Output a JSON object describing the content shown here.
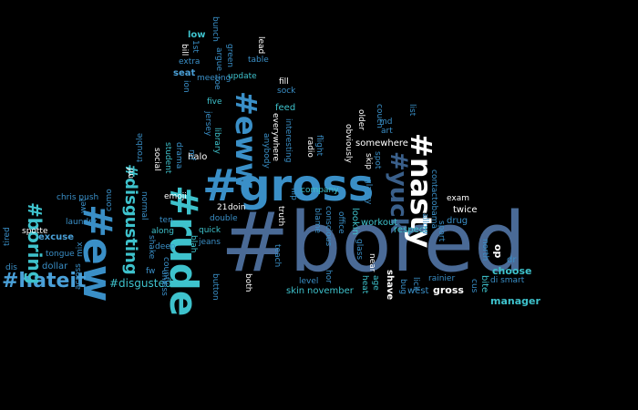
{
  "words": [
    {
      "t": "#bored",
      "c": "#4a6a96"
    },
    {
      "t": "#gross",
      "c": "#3a8fc7"
    },
    {
      "t": "#rude",
      "c": "#3ec2cc"
    },
    {
      "t": "#ew",
      "c": "#3a8fc7"
    },
    {
      "t": "#eww",
      "c": "#3a8fc7"
    },
    {
      "t": "#nasty",
      "c": "#ffffff"
    },
    {
      "t": "#yuck",
      "c": "#3a5f8a"
    },
    {
      "t": "#disgusted",
      "c": "#3ec2cc"
    },
    {
      "t": "#hateit",
      "c": "#4aa0d8"
    },
    {
      "t": "#boring",
      "c": "#3ec2cc"
    },
    {
      "t": "#disgusting",
      "c": "#3ec2cc"
    },
    {
      "t": "choose",
      "c": "#3ec2cc"
    },
    {
      "t": "manager",
      "c": "#3ec2cc"
    },
    {
      "t": "gross",
      "c": "#ffffff"
    },
    {
      "t": "respect",
      "c": "#3ec2cc"
    },
    {
      "t": "workout",
      "c": "#3ec2cc"
    },
    {
      "t": "somewhere",
      "c": "#ffffff"
    },
    {
      "t": "excuse",
      "c": "#4aa0d8"
    },
    {
      "t": "chris push",
      "c": "#3a8fc7"
    },
    {
      "t": "dollar",
      "c": "#3a8fc7"
    },
    {
      "t": "tongue",
      "c": "#3a8fc7"
    },
    {
      "t": "laundry",
      "c": "#3a8fc7"
    },
    {
      "t": "spotte",
      "c": "#ffffff"
    },
    {
      "t": "twice",
      "c": "#ffffff"
    },
    {
      "t": "exam",
      "c": "#ffffff"
    },
    {
      "t": "drug",
      "c": "#3a8fc7"
    },
    {
      "t": "skin",
      "c": "#3ec2cc"
    },
    {
      "t": "november",
      "c": "#3ec2cc"
    },
    {
      "t": "company",
      "c": "#3ec2cc"
    },
    {
      "t": "level",
      "c": "#3a8fc7"
    },
    {
      "t": "west",
      "c": "#3a8fc7"
    },
    {
      "t": "rainier",
      "c": "#3a8fc7"
    },
    {
      "t": "dr",
      "c": "#3a8fc7"
    },
    {
      "t": "north",
      "c": "#3a8fc7"
    },
    {
      "t": "di smart",
      "c": "#3a8fc7"
    },
    {
      "t": "fw",
      "c": "#3a8fc7"
    },
    {
      "t": "doin",
      "c": "#ffffff"
    },
    {
      "t": "21",
      "c": "#ffffff"
    },
    {
      "t": "jeans",
      "c": "#3a8fc7"
    },
    {
      "t": "double",
      "c": "#3a8fc7"
    },
    {
      "t": "quick",
      "c": "#3ec2cc"
    },
    {
      "t": "deep",
      "c": "#3a8fc7"
    },
    {
      "t": "ten",
      "c": "#3a8fc7"
    },
    {
      "t": "along",
      "c": "#3ec2cc"
    },
    {
      "t": "emoji",
      "c": "#ffffff"
    },
    {
      "t": "halo",
      "c": "#ffffff"
    },
    {
      "t": "dis",
      "c": "#3a8fc7"
    },
    {
      "t": "trouble",
      "c": "#3a8fc7"
    },
    {
      "t": "low",
      "c": "#3ec2cc"
    },
    {
      "t": "extra",
      "c": "#3a8fc7"
    },
    {
      "t": "seat",
      "c": "#4aa0d8"
    },
    {
      "t": "meeting",
      "c": "#3a8fc7"
    },
    {
      "t": "five",
      "c": "#3ec2cc"
    },
    {
      "t": "update",
      "c": "#3ec2cc"
    },
    {
      "t": "table",
      "c": "#3a8fc7"
    },
    {
      "t": "fill",
      "c": "#ffffff"
    },
    {
      "t": "sock",
      "c": "#3a8fc7"
    },
    {
      "t": "feed",
      "c": "#3ec2cc"
    },
    {
      "t": "md",
      "c": "#3a8fc7"
    },
    {
      "t": "art",
      "c": "#3a8fc7"
    },
    {
      "t": "list",
      "c": "#3a8fc7"
    },
    {
      "t": "contact",
      "c": "#3a8fc7"
    },
    {
      "t": "obama",
      "c": "#3a8fc7"
    },
    {
      "t": "allow",
      "c": "#3a8fc7"
    },
    {
      "t": "sport",
      "c": "#3a8fc7"
    },
    {
      "t": "glass",
      "c": "#3a8fc7"
    },
    {
      "t": "glassy",
      "c": "#3a8fc7"
    },
    {
      "t": "near",
      "c": "#ffffff"
    },
    {
      "t": "heat",
      "c": "#3ec2cc"
    },
    {
      "t": "age",
      "c": "#3ec2cc"
    },
    {
      "t": "shave",
      "c": "#ffffff"
    },
    {
      "t": "lick",
      "c": "#3a8fc7"
    },
    {
      "t": "bug",
      "c": "#3a8fc7"
    },
    {
      "t": "cus",
      "c": "#3a8fc7"
    },
    {
      "t": "bite",
      "c": "#3ec2cc"
    },
    {
      "t": "op",
      "c": "#ffffff"
    },
    {
      "t": "hor",
      "c": "#3a8fc7"
    },
    {
      "t": "blame",
      "c": "#3a8fc7"
    },
    {
      "t": "office",
      "c": "#3a8fc7"
    },
    {
      "t": "conscious",
      "c": "#3a8fc7"
    },
    {
      "t": "lookin",
      "c": "#3ec2cc"
    },
    {
      "t": "obviously",
      "c": "#ffffff"
    },
    {
      "t": "radio",
      "c": "#ffffff"
    },
    {
      "t": "flight",
      "c": "#3a8fc7"
    },
    {
      "t": "truth",
      "c": "#ffffff"
    },
    {
      "t": "teach",
      "c": "#3a8fc7"
    },
    {
      "t": "flip",
      "c": "#3a8fc7"
    },
    {
      "t": "student",
      "c": "#3ec2cc"
    },
    {
      "t": "social",
      "c": "#ffffff"
    },
    {
      "t": "county",
      "c": "#3a8fc7"
    },
    {
      "t": "normal",
      "c": "#3a8fc7"
    },
    {
      "t": "shake",
      "c": "#3a8fc7"
    },
    {
      "t": "unless",
      "c": "#3a8fc7"
    },
    {
      "t": "library",
      "c": "#3ec2cc"
    },
    {
      "t": "jersey",
      "c": "#3a8fc7"
    },
    {
      "t": "everywhere",
      "c": "#ffffff"
    },
    {
      "t": "interesting",
      "c": "#3a8fc7"
    },
    {
      "t": "anybody",
      "c": "#3a8fc7"
    },
    {
      "t": "both",
      "c": "#ffffff"
    },
    {
      "t": "spot",
      "c": "#3a8fc7"
    },
    {
      "t": "couch",
      "c": "#3a8fc7"
    },
    {
      "t": "skip",
      "c": "#ffffff"
    },
    {
      "t": "bunch",
      "c": "#3a8fc7"
    },
    {
      "t": "argue",
      "c": "#3a8fc7"
    },
    {
      "t": "green",
      "c": "#3a8fc7"
    },
    {
      "t": "lead",
      "c": "#ffffff"
    },
    {
      "t": "bill",
      "c": "#ffffff"
    },
    {
      "t": "ion",
      "c": "#3a8fc7"
    },
    {
      "t": "toe",
      "c": "#3a8fc7"
    },
    {
      "t": "blah",
      "c": "#3ec2cc"
    },
    {
      "t": "button",
      "c": "#3a8fc7"
    },
    {
      "t": "tired",
      "c": "#3a8fc7"
    },
    {
      "t": "across",
      "c": "#3a8fc7"
    },
    {
      "t": "mix",
      "c": "#3a8fc7"
    },
    {
      "t": "wet",
      "c": "#3a8fc7"
    },
    {
      "t": "como",
      "c": "#3a8fc7"
    },
    {
      "t": "mf",
      "c": "#ffffff"
    },
    {
      "t": "drama",
      "c": "#3a8fc7"
    },
    {
      "t": "older",
      "c": "#3a8fc7"
    },
    {
      "t": "1st",
      "c": "#ffffff"
    },
    {
      "t": "nah",
      "c": "#3a8fc7"
    }
  ]
}
